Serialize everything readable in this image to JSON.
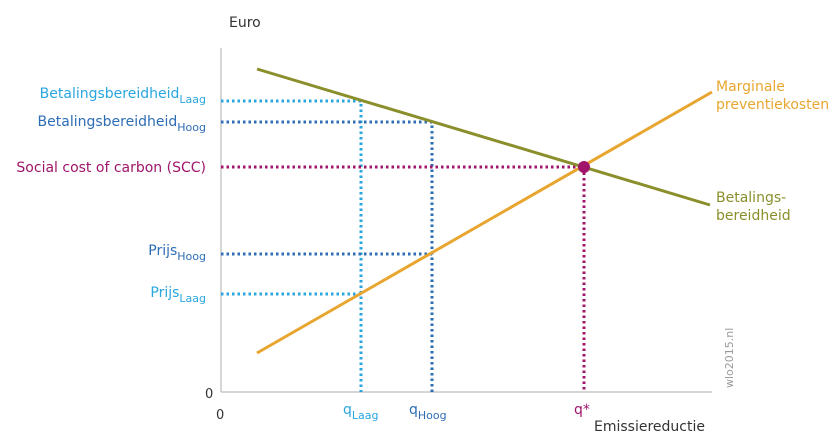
{
  "axes": {
    "y_label": "Euro",
    "x_label": "Emissiereductie",
    "origin_y": "0",
    "origin_x": "0"
  },
  "curves": {
    "supply": {
      "label_line1": "Marginale",
      "label_line2": "preventiekosten",
      "color": "#e8a630"
    },
    "demand": {
      "label_line1": "Betalings-",
      "label_line2": "bereidheid",
      "color": "#8a8f2c"
    }
  },
  "levels": {
    "wtp_low": {
      "base": "Betalingsbereidheid",
      "sub": "Laag",
      "color": "#29a6e0"
    },
    "wtp_high": {
      "base": "Betalingsbereidheid",
      "sub": "Hoog",
      "color": "#2d6db5"
    },
    "scc": {
      "base": "Social cost of carbon (SCC)",
      "color": "#a0156a"
    },
    "price_high": {
      "base": "Prijs",
      "sub": "Hoog",
      "color": "#2d6db5"
    },
    "price_low": {
      "base": "Prijs",
      "sub": "Laag",
      "color": "#29a6e0"
    }
  },
  "quantities": {
    "q_low": {
      "base": "q",
      "sub": "Laag",
      "color": "#29a6e0"
    },
    "q_high": {
      "base": "q",
      "sub": "Hoog",
      "color": "#2d6db5"
    },
    "q_star": {
      "base": "q*",
      "color": "#a0156a"
    }
  },
  "watermark": "wlo2015.nl"
}
